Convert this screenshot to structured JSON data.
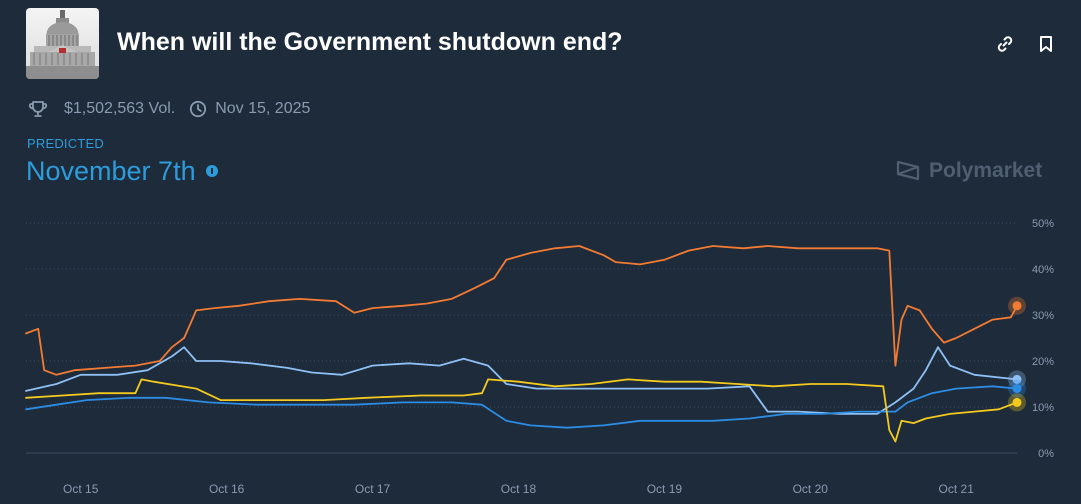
{
  "header": {
    "title": "When will the Government shutdown end?",
    "thumbnail_icon": "capitol-building-icon",
    "link_icon": "link-icon",
    "bookmark_icon": "bookmark-icon"
  },
  "meta": {
    "volume": "$1,502,563 Vol.",
    "end_date": "Nov 15, 2025",
    "trophy_icon": "trophy-icon",
    "clock_icon": "clock-icon"
  },
  "prediction": {
    "label": "PREDICTED",
    "value": "November 7th"
  },
  "brand": {
    "name": "Polymarket",
    "icon": "polymarket-logo-icon"
  },
  "chart_data": {
    "type": "line",
    "title": "",
    "xlabel": "",
    "ylabel": "",
    "x_ticks": [
      "Oct 15",
      "Oct 16",
      "Oct 17",
      "Oct 18",
      "Oct 19",
      "Oct 20",
      "Oct 21"
    ],
    "x_range": [
      "Oct 14 15:00",
      "Oct 21 10:00"
    ],
    "y_ticks": [
      "0%",
      "10%",
      "20%",
      "30%",
      "40%",
      "50%"
    ],
    "ylim": [
      0,
      50
    ],
    "grid": true,
    "grid_style": "dotted-horizontal",
    "y_axis_side": "right",
    "series": [
      {
        "color": "#f47b33",
        "points": [
          [
            "Oct 14 15:00",
            26
          ],
          [
            "Oct 14 17:00",
            27
          ],
          [
            "Oct 14 18:00",
            18
          ],
          [
            "Oct 14 20:00",
            17
          ],
          [
            "Oct 14 23:00",
            18
          ],
          [
            "Oct 15 04:00",
            18.5
          ],
          [
            "Oct 15 09:00",
            19
          ],
          [
            "Oct 15 13:00",
            20
          ],
          [
            "Oct 15 15:00",
            23
          ],
          [
            "Oct 15 17:00",
            25
          ],
          [
            "Oct 15 18:00",
            28
          ],
          [
            "Oct 15 19:00",
            31
          ],
          [
            "Oct 15 22:00",
            31.5
          ],
          [
            "Oct 16 02:00",
            32
          ],
          [
            "Oct 16 07:00",
            33
          ],
          [
            "Oct 16 12:00",
            33.5
          ],
          [
            "Oct 16 18:00",
            33
          ],
          [
            "Oct 16 21:00",
            30.5
          ],
          [
            "Oct 17 00:00",
            31.5
          ],
          [
            "Oct 17 05:00",
            32
          ],
          [
            "Oct 17 09:00",
            32.5
          ],
          [
            "Oct 17 13:00",
            33.5
          ],
          [
            "Oct 17 17:00",
            36
          ],
          [
            "Oct 17 20:00",
            38
          ],
          [
            "Oct 17 22:00",
            42
          ],
          [
            "Oct 18 02:00",
            43.5
          ],
          [
            "Oct 18 06:00",
            44.5
          ],
          [
            "Oct 18 10:00",
            45
          ],
          [
            "Oct 18 14:00",
            43
          ],
          [
            "Oct 18 16:00",
            41.5
          ],
          [
            "Oct 18 20:00",
            41
          ],
          [
            "Oct 19 00:00",
            42
          ],
          [
            "Oct 19 04:00",
            44
          ],
          [
            "Oct 19 08:00",
            45
          ],
          [
            "Oct 19 13:00",
            44.5
          ],
          [
            "Oct 19 17:00",
            45
          ],
          [
            "Oct 19 22:00",
            44.5
          ],
          [
            "Oct 20 06:00",
            44.5
          ],
          [
            "Oct 20 11:00",
            44.5
          ],
          [
            "Oct 20 13:00",
            44
          ],
          [
            "Oct 20 14:00",
            19
          ],
          [
            "Oct 20 15:00",
            29
          ],
          [
            "Oct 20 16:00",
            32
          ],
          [
            "Oct 20 18:00",
            31
          ],
          [
            "Oct 20 20:00",
            27
          ],
          [
            "Oct 20 22:00",
            24
          ],
          [
            "Oct 21 00:00",
            25
          ],
          [
            "Oct 21 03:00",
            27
          ],
          [
            "Oct 21 06:00",
            29
          ],
          [
            "Oct 21 09:00",
            29.5
          ],
          [
            "Oct 21 10:00",
            32
          ]
        ]
      },
      {
        "color": "#8fc0f5",
        "points": [
          [
            "Oct 14 15:00",
            13.5
          ],
          [
            "Oct 14 20:00",
            15
          ],
          [
            "Oct 15 00:00",
            17
          ],
          [
            "Oct 15 06:00",
            17
          ],
          [
            "Oct 15 11:00",
            18
          ],
          [
            "Oct 15 15:00",
            21
          ],
          [
            "Oct 15 17:00",
            23
          ],
          [
            "Oct 15 19:00",
            20
          ],
          [
            "Oct 15 23:00",
            20
          ],
          [
            "Oct 16 04:00",
            19.5
          ],
          [
            "Oct 16 10:00",
            18.5
          ],
          [
            "Oct 16 14:00",
            17.5
          ],
          [
            "Oct 16 19:00",
            17
          ],
          [
            "Oct 17 00:00",
            19
          ],
          [
            "Oct 17 06:00",
            19.5
          ],
          [
            "Oct 17 11:00",
            19
          ],
          [
            "Oct 17 15:00",
            20.5
          ],
          [
            "Oct 17 19:00",
            19
          ],
          [
            "Oct 17 22:00",
            15
          ],
          [
            "Oct 18 03:00",
            14
          ],
          [
            "Oct 18 10:00",
            14
          ],
          [
            "Oct 18 17:00",
            14
          ],
          [
            "Oct 19 00:00",
            14
          ],
          [
            "Oct 19 07:00",
            14
          ],
          [
            "Oct 19 14:00",
            14.5
          ],
          [
            "Oct 19 17:00",
            9
          ],
          [
            "Oct 19 22:00",
            9
          ],
          [
            "Oct 20 05:00",
            8.5
          ],
          [
            "Oct 20 11:00",
            8.5
          ],
          [
            "Oct 20 14:00",
            11
          ],
          [
            "Oct 20 17:00",
            14
          ],
          [
            "Oct 20 19:00",
            18
          ],
          [
            "Oct 20 21:00",
            23
          ],
          [
            "Oct 20 23:00",
            19
          ],
          [
            "Oct 21 03:00",
            17
          ],
          [
            "Oct 21 10:00",
            16
          ]
        ]
      },
      {
        "color": "#2d8ce3",
        "points": [
          [
            "Oct 14 15:00",
            9.5
          ],
          [
            "Oct 14 20:00",
            10.5
          ],
          [
            "Oct 15 01:00",
            11.5
          ],
          [
            "Oct 15 08:00",
            12
          ],
          [
            "Oct 15 14:00",
            12
          ],
          [
            "Oct 15 21:00",
            11
          ],
          [
            "Oct 16 05:00",
            10.5
          ],
          [
            "Oct 16 13:00",
            10.5
          ],
          [
            "Oct 16 21:00",
            10.5
          ],
          [
            "Oct 17 05:00",
            11
          ],
          [
            "Oct 17 13:00",
            11
          ],
          [
            "Oct 17 18:00",
            10.5
          ],
          [
            "Oct 17 22:00",
            7
          ],
          [
            "Oct 18 02:00",
            6
          ],
          [
            "Oct 18 08:00",
            5.5
          ],
          [
            "Oct 18 14:00",
            6
          ],
          [
            "Oct 18 20:00",
            7
          ],
          [
            "Oct 19 02:00",
            7
          ],
          [
            "Oct 19 08:00",
            7
          ],
          [
            "Oct 19 14:00",
            7.5
          ],
          [
            "Oct 19 20:00",
            8.5
          ],
          [
            "Oct 20 02:00",
            8.5
          ],
          [
            "Oct 20 08:00",
            9
          ],
          [
            "Oct 20 14:00",
            9
          ],
          [
            "Oct 20 16:00",
            11
          ],
          [
            "Oct 20 20:00",
            13
          ],
          [
            "Oct 21 00:00",
            14
          ],
          [
            "Oct 21 06:00",
            14.5
          ],
          [
            "Oct 21 10:00",
            14
          ]
        ]
      },
      {
        "color": "#f4ca1e",
        "points": [
          [
            "Oct 14 15:00",
            12
          ],
          [
            "Oct 14 21:00",
            12.5
          ],
          [
            "Oct 15 03:00",
            13
          ],
          [
            "Oct 15 09:00",
            13
          ],
          [
            "Oct 15 10:00",
            16
          ],
          [
            "Oct 15 12:00",
            15.5
          ],
          [
            "Oct 15 19:00",
            14
          ],
          [
            "Oct 15 23:00",
            11.5
          ],
          [
            "Oct 16 08:00",
            11.5
          ],
          [
            "Oct 16 16:00",
            11.5
          ],
          [
            "Oct 16 23:00",
            12
          ],
          [
            "Oct 17 08:00",
            12.5
          ],
          [
            "Oct 17 15:00",
            12.5
          ],
          [
            "Oct 17 18:00",
            13
          ],
          [
            "Oct 17 19:00",
            16
          ],
          [
            "Oct 18 00:00",
            15.5
          ],
          [
            "Oct 18 06:00",
            14.5
          ],
          [
            "Oct 18 12:00",
            15
          ],
          [
            "Oct 18 18:00",
            16
          ],
          [
            "Oct 19 00:00",
            15.5
          ],
          [
            "Oct 19 06:00",
            15.5
          ],
          [
            "Oct 19 12:00",
            15
          ],
          [
            "Oct 19 18:00",
            14.5
          ],
          [
            "Oct 20 00:00",
            15
          ],
          [
            "Oct 20 06:00",
            15
          ],
          [
            "Oct 20 12:00",
            14.5
          ],
          [
            "Oct 20 13:00",
            5
          ],
          [
            "Oct 20 14:00",
            2.5
          ],
          [
            "Oct 20 15:00",
            7
          ],
          [
            "Oct 20 17:00",
            6.5
          ],
          [
            "Oct 20 19:00",
            7.5
          ],
          [
            "Oct 20 23:00",
            8.5
          ],
          [
            "Oct 21 03:00",
            9
          ],
          [
            "Oct 21 07:00",
            9.5
          ],
          [
            "Oct 21 10:00",
            11
          ]
        ]
      }
    ]
  }
}
